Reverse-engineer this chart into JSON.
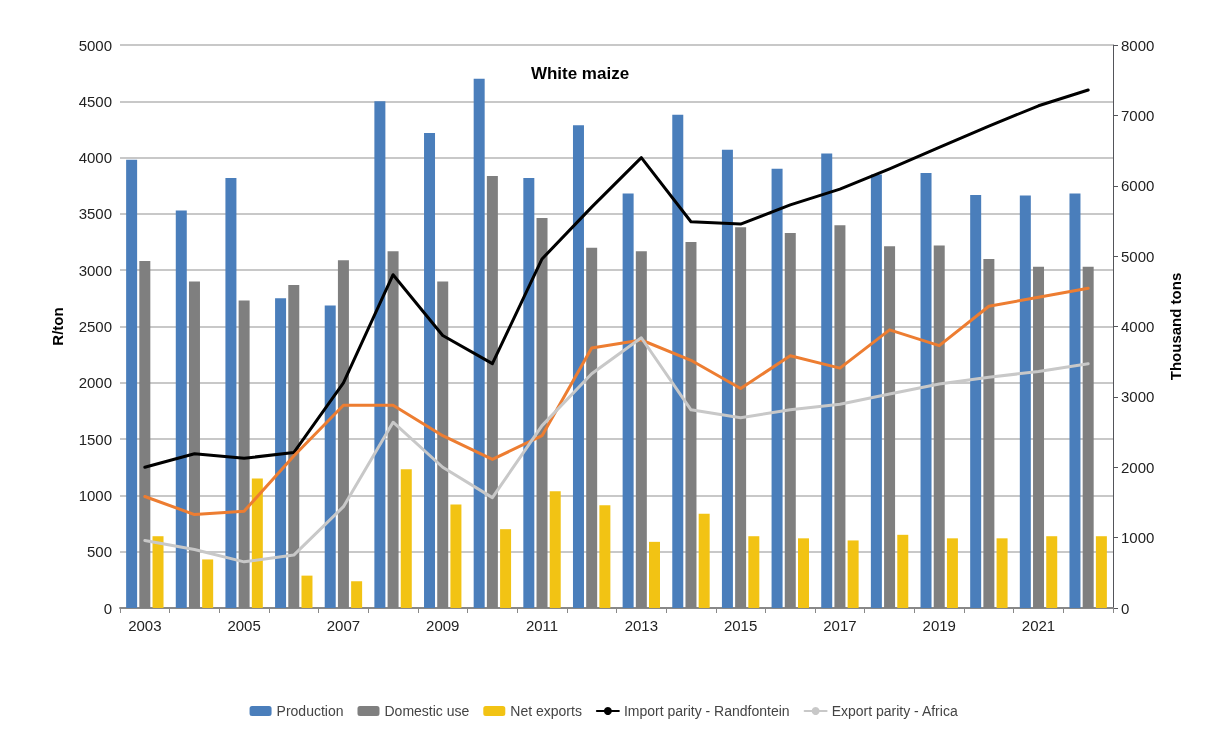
{
  "chart_data": {
    "type": "bar",
    "title": "White maize",
    "ylabel": "R/ton",
    "y2label": "Thousand tons",
    "categories": [
      "2003",
      null,
      "2005",
      null,
      "2007",
      null,
      "2009",
      null,
      "2011",
      null,
      "2013",
      null,
      "2015",
      null,
      "2017",
      null,
      "2019",
      null,
      "2021",
      null
    ],
    "series": [
      {
        "name": "Production",
        "axis": "y2",
        "color": "#4a7ebb",
        "values": [
          6370,
          5650,
          6110,
          4400,
          4300,
          7200,
          6750,
          7520,
          6110,
          6860,
          5890,
          7010,
          6510,
          6240,
          6460,
          6160,
          6180,
          5870,
          5860,
          5890
        ]
      },
      {
        "name": "Domestic use",
        "axis": "y2",
        "color": "#7f7f7f",
        "values": [
          4930,
          4640,
          4370,
          4590,
          4940,
          5070,
          4640,
          6140,
          5540,
          5120,
          5070,
          5200,
          5410,
          5330,
          5440,
          5140,
          5150,
          4960,
          4850,
          4850
        ]
      },
      {
        "name": "Net exports",
        "axis": "y2",
        "color": "#f2c314",
        "values": [
          1020,
          690,
          1840,
          460,
          380,
          1970,
          1470,
          1120,
          1660,
          1460,
          940,
          1340,
          1020,
          990,
          960,
          1040,
          990,
          990,
          1020,
          1020
        ]
      },
      {
        "name": "Import parity - Randfontein",
        "type": "line",
        "color": "#000000",
        "values": [
          1250,
          1370,
          1330,
          1380,
          2000,
          2960,
          2420,
          2170,
          3100,
          3560,
          4000,
          3430,
          3410,
          3580,
          3720,
          3900,
          4090,
          4280,
          4460,
          4600
        ]
      },
      {
        "type": "line",
        "color": "#ed7d31",
        "values": [
          990,
          830,
          860,
          1350,
          1800,
          1800,
          1530,
          1320,
          1530,
          2310,
          2380,
          2200,
          1950,
          2240,
          2130,
          2470,
          2330,
          2680,
          2760,
          2840
        ]
      },
      {
        "name": "Export parity - Africa",
        "type": "line",
        "color": "#c8c8c8",
        "values": [
          600,
          520,
          410,
          470,
          900,
          1650,
          1250,
          980,
          1620,
          2080,
          2400,
          1760,
          1690,
          1760,
          1810,
          1900,
          1990,
          2050,
          2100,
          2170
        ]
      }
    ],
    "ylim": [
      0,
      5000
    ],
    "yticks": [
      0,
      500,
      1000,
      1500,
      2000,
      2500,
      3000,
      3500,
      4000,
      4500,
      5000
    ],
    "y2lim": [
      0,
      8000
    ],
    "y2ticks": [
      0,
      1000,
      2000,
      3000,
      4000,
      5000,
      6000,
      7000,
      8000
    ],
    "grid": "y",
    "legend": "bottom",
    "marker": "none",
    "line_style": "solid"
  }
}
